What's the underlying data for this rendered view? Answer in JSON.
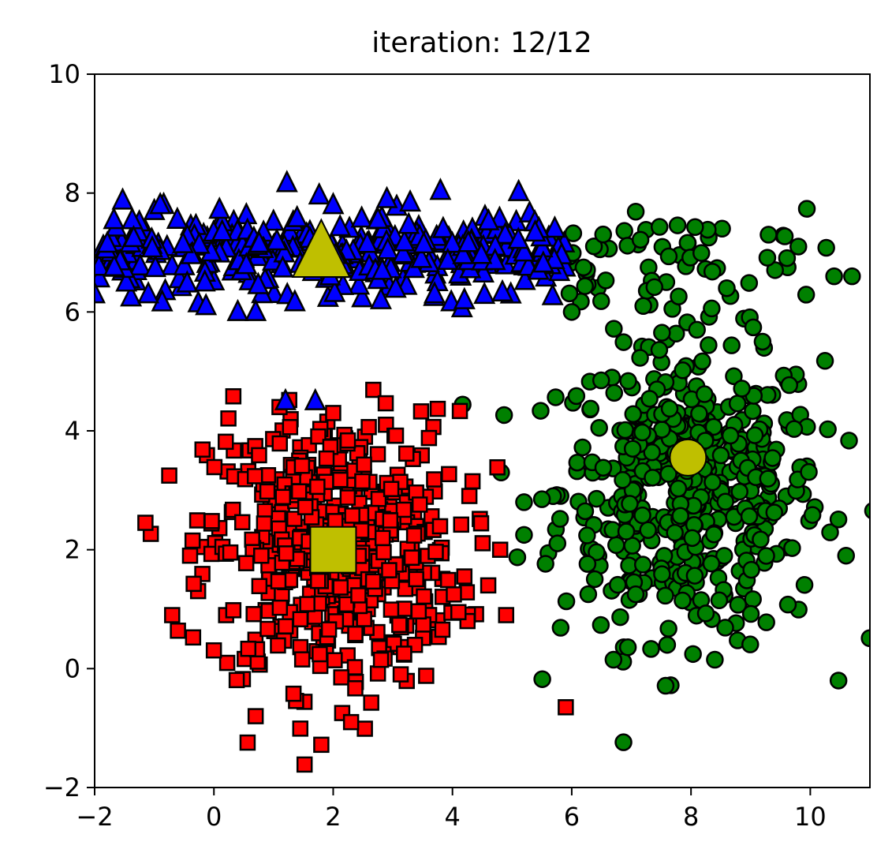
{
  "chart_data": {
    "type": "scatter",
    "title": "iteration: 12/12",
    "xlabel": "",
    "ylabel": "",
    "xlim": [
      -2,
      11
    ],
    "ylim": [
      -2,
      10
    ],
    "xticks": [
      -2,
      0,
      2,
      4,
      6,
      8,
      10
    ],
    "yticks": [
      -2,
      0,
      2,
      4,
      6,
      8,
      10
    ],
    "xtick_labels": [
      "−2",
      "0",
      "2",
      "4",
      "6",
      "8",
      "10"
    ],
    "ytick_labels": [
      "−2",
      "0",
      "2",
      "4",
      "6",
      "8",
      "10"
    ],
    "grid": false,
    "legend": "none",
    "series": [
      {
        "marker": "triangle",
        "color": "#0000ff",
        "description": "cluster of about 350 points spanning x -2 to 6, y about 6 to 7.8 (horizontal band)",
        "distribution": {
          "x_range": [
            -2.0,
            6.0
          ],
          "y_center": 7.0,
          "y_spread": 0.35,
          "count": 350
        },
        "outliers": [
          {
            "x": -1.0,
            "y": 7.7
          },
          {
            "x": -0.9,
            "y": 7.8
          },
          {
            "x": 0.4,
            "y": 6.0
          },
          {
            "x": 0.7,
            "y": 6.0
          },
          {
            "x": 1.7,
            "y": 4.5
          },
          {
            "x": 1.2,
            "y": 4.5
          },
          {
            "x": 2.8,
            "y": 6.2
          },
          {
            "x": 3.7,
            "y": 6.3
          },
          {
            "x": 4.2,
            "y": 6.2
          },
          {
            "x": -2.0,
            "y": 6.3
          },
          {
            "x": -1.1,
            "y": 6.3
          },
          {
            "x": 2.0,
            "y": 7.8
          },
          {
            "x": 2.9,
            "y": 7.9
          }
        ]
      },
      {
        "marker": "square",
        "color": "#ff0000",
        "description": "round cluster of about 500 points centered near (2, 2)",
        "distribution": {
          "x_center": 2.0,
          "y_center": 2.0,
          "x_spread": 1.05,
          "y_spread": 1.15,
          "count": 520
        },
        "outliers": [
          {
            "x": -0.7,
            "y": 0.9
          },
          {
            "x": -0.4,
            "y": 1.9
          },
          {
            "x": 4.8,
            "y": 2.0
          },
          {
            "x": 4.9,
            "y": 0.9
          },
          {
            "x": 5.9,
            "y": -0.65
          },
          {
            "x": 4.2,
            "y": 1.55
          },
          {
            "x": 4.6,
            "y": 1.4
          },
          {
            "x": 4.1,
            "y": 0.95
          },
          {
            "x": 0.7,
            "y": -0.8
          },
          {
            "x": 2.3,
            "y": -0.9
          },
          {
            "x": 1.1,
            "y": 4.4
          },
          {
            "x": 2.0,
            "y": 4.3
          }
        ]
      },
      {
        "marker": "circle",
        "color": "#008000",
        "description": "round cluster of about 500 points centered near (8, 3.5) plus points along upper right band near y 6.2 to 7.5",
        "distribution": {
          "x_center": 8.0,
          "y_center": 3.0,
          "x_spread": 1.1,
          "y_spread": 1.25,
          "count": 480
        },
        "band": {
          "x_range": [
            5.8,
            10.8
          ],
          "y_center": 6.9,
          "y_spread": 0.35,
          "count": 60
        },
        "outliers": [
          {
            "x": 6.7,
            "y": 0.15
          },
          {
            "x": 5.2,
            "y": 2.25
          },
          {
            "x": 5.2,
            "y": 2.8
          },
          {
            "x": 5.5,
            "y": 2.85
          },
          {
            "x": 8.1,
            "y": 5.7
          },
          {
            "x": 9.2,
            "y": 5.5
          },
          {
            "x": 6.0,
            "y": 6.0
          },
          {
            "x": 8.4,
            "y": 0.15
          },
          {
            "x": 7.6,
            "y": 0.4
          },
          {
            "x": 10.6,
            "y": 1.9
          },
          {
            "x": 9.3,
            "y": 7.3
          },
          {
            "x": 10.4,
            "y": 6.6
          },
          {
            "x": 10.7,
            "y": 6.6
          },
          {
            "x": 9.8,
            "y": 7.1
          },
          {
            "x": 7.2,
            "y": 6.1
          },
          {
            "x": 8.6,
            "y": 6.4
          }
        ]
      }
    ],
    "centroids": [
      {
        "marker": "triangle",
        "color": "#bfbf00",
        "x": 1.8,
        "y": 7.0
      },
      {
        "marker": "square",
        "color": "#bfbf00",
        "x": 2.0,
        "y": 2.0
      },
      {
        "marker": "circle",
        "color": "#bfbf00",
        "x": 7.95,
        "y": 3.55
      }
    ]
  }
}
